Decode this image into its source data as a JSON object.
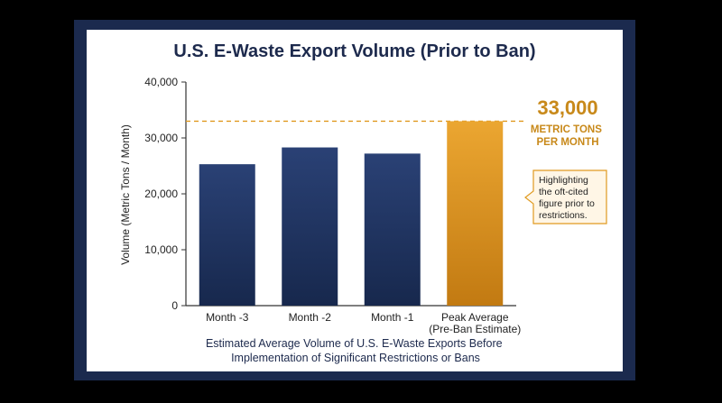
{
  "chart_data": {
    "type": "bar",
    "title": "U.S. E-Waste Export Volume (Prior to Ban)",
    "ylabel": "Volume (Metric Tons / Month)",
    "xlabel_lines": [
      "Estimated Average Volume of U.S. E-Waste Exports Before",
      "Implementation of Significant Restrictions or Bans"
    ],
    "categories": [
      [
        "Month -3"
      ],
      [
        "Month -2"
      ],
      [
        "Month -1"
      ],
      [
        "Peak Average",
        "(Pre-Ban Estimate)"
      ]
    ],
    "values": [
      25300,
      28300,
      27200,
      33000
    ],
    "ylim": [
      0,
      40000
    ],
    "yticks": [
      0,
      10000,
      20000,
      30000,
      40000
    ],
    "ytick_labels": [
      "0",
      "10,000",
      "20,000",
      "30,000",
      "40,000"
    ],
    "colors": {
      "bar": "#1f3461",
      "highlight_bar": "#e3a02e",
      "highlight_bar_dark": "#c27a12",
      "reference_line": "#e09a20",
      "frame": "#1b2a4e"
    },
    "grid": false,
    "reference_line": {
      "value": 33000
    },
    "annotation": {
      "value_text": "33,000",
      "unit_lines": [
        "METRIC TONS",
        "PER MONTH"
      ],
      "note_lines": [
        "Highlighting",
        "the oft-cited",
        "figure prior to",
        "restrictions."
      ]
    }
  }
}
